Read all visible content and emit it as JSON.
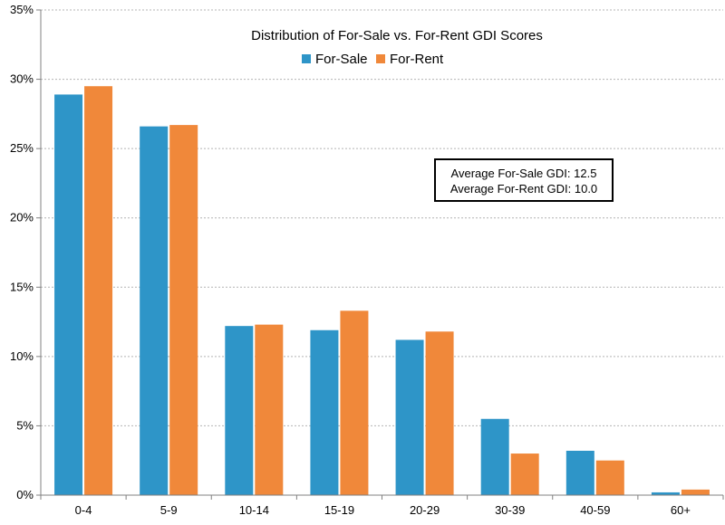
{
  "chart_data": {
    "type": "bar",
    "title": "Distribution of For-Sale vs. For-Rent GDI Scores",
    "xlabel": "",
    "ylabel": "",
    "categories": [
      "0-4",
      "5-9",
      "10-14",
      "15-19",
      "20-29",
      "30-39",
      "40-59",
      "60+"
    ],
    "series": [
      {
        "name": "For-Sale",
        "color": "#2e95c8",
        "values": [
          28.9,
          26.6,
          12.2,
          11.9,
          11.2,
          5.5,
          3.2,
          0.2
        ]
      },
      {
        "name": "For-Rent",
        "color": "#f0883a",
        "values": [
          29.5,
          26.7,
          12.3,
          13.3,
          11.8,
          3.0,
          2.5,
          0.4
        ]
      }
    ],
    "ylim": [
      0,
      35
    ],
    "y_ticks": [
      0,
      5,
      10,
      15,
      20,
      25,
      30,
      35
    ],
    "y_tick_labels": [
      "0%",
      "5%",
      "10%",
      "15%",
      "20%",
      "25%",
      "30%",
      "35%"
    ],
    "grid": true,
    "legend_position": "top-center",
    "annotation": {
      "lines": [
        "Average For-Sale GDI:  12.5",
        "Average For-Rent GDI:  10.0"
      ]
    }
  }
}
